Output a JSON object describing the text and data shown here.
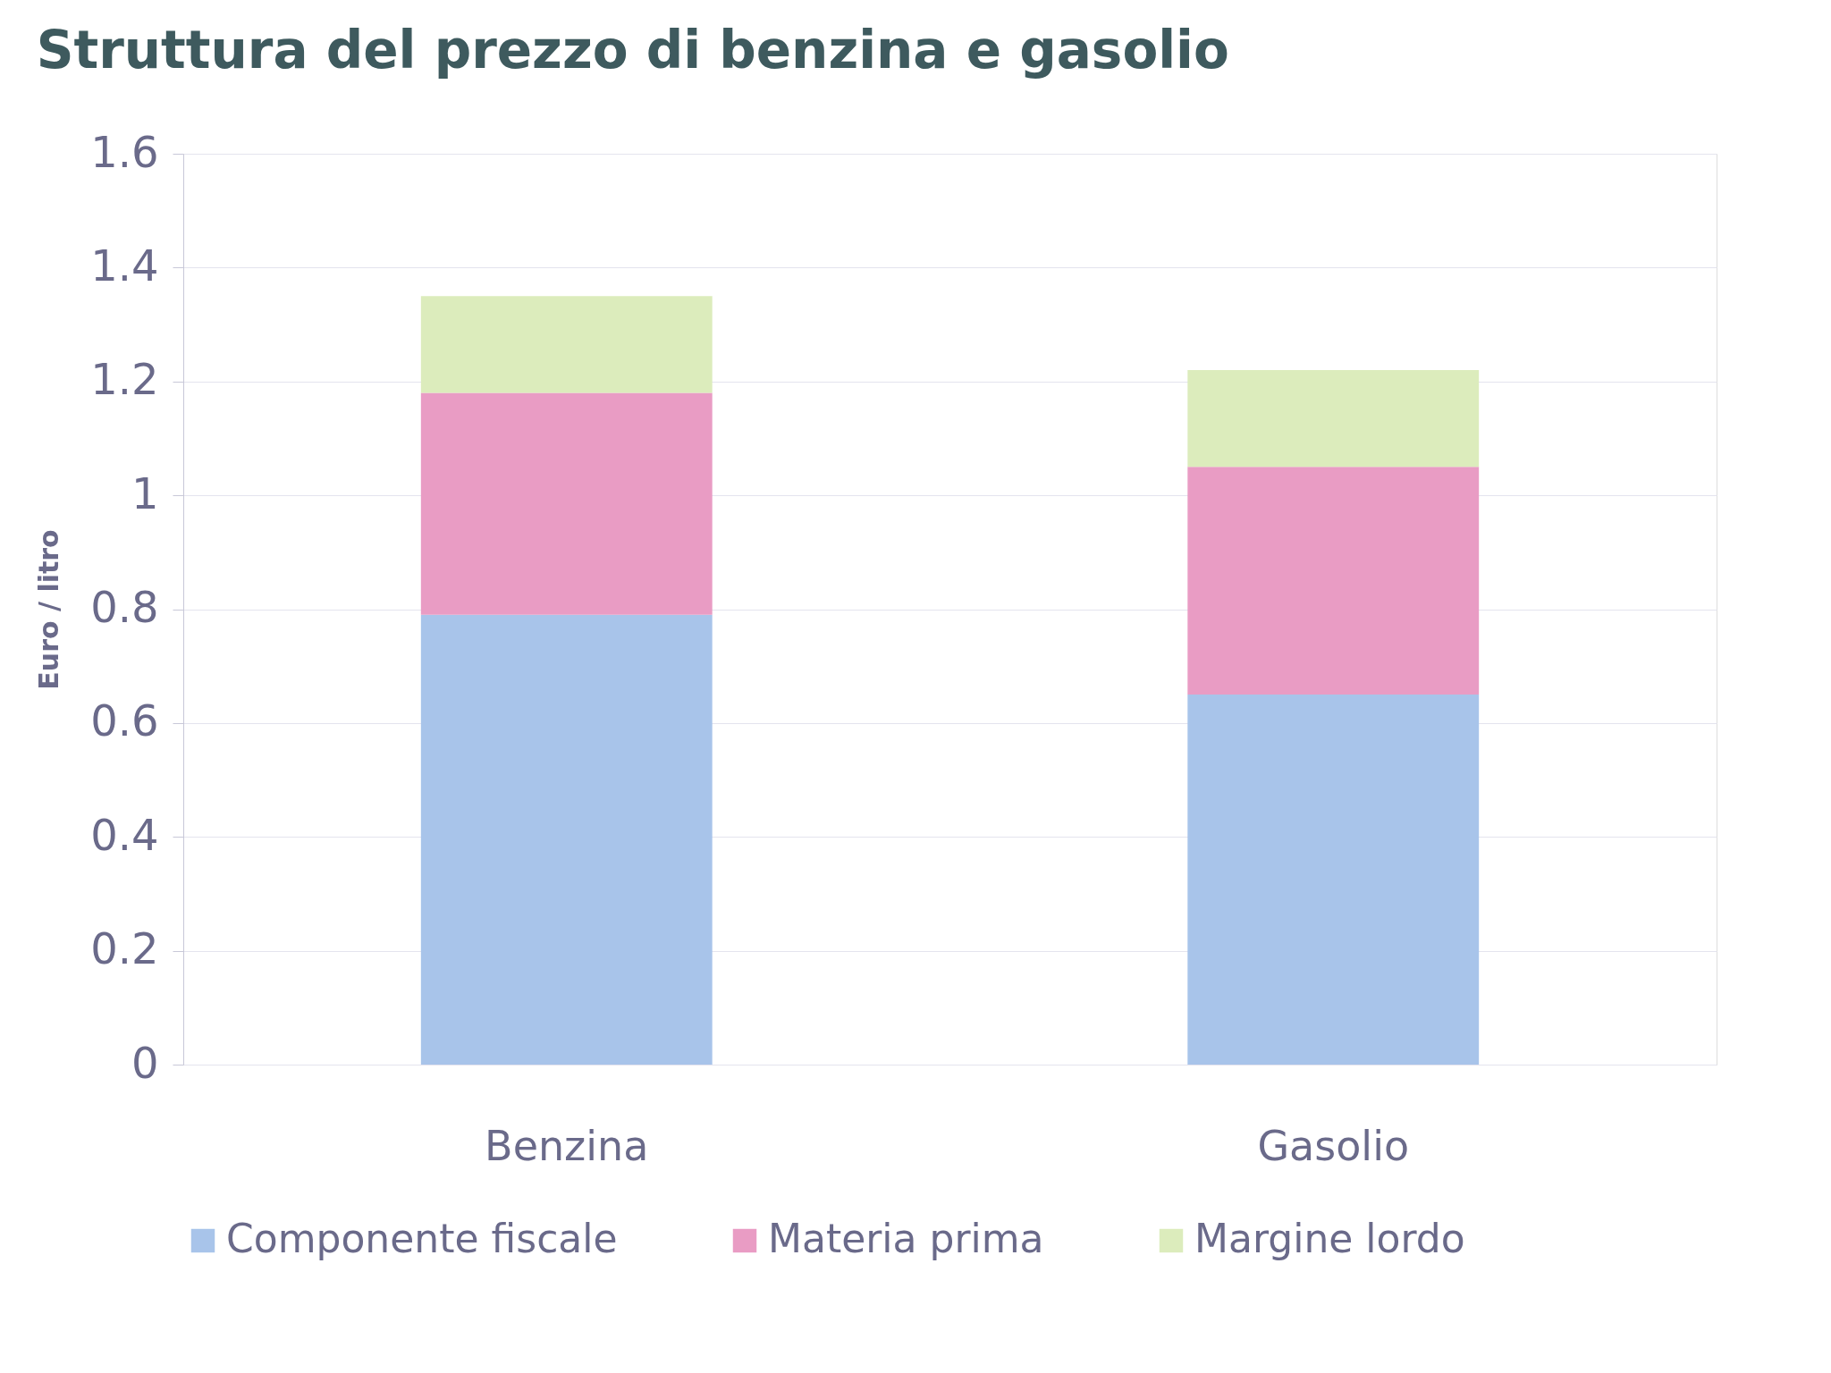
{
  "chart_data": {
    "type": "bar",
    "title": "Struttura del prezzo di benzina e gasolio",
    "ylabel": "Euro / litro",
    "categories": [
      "Benzina",
      "Gasolio"
    ],
    "stacked": true,
    "series": [
      {
        "name": "Componente fiscale",
        "color": "#a8c4ea",
        "values": [
          0.79,
          0.65
        ]
      },
      {
        "name": "Materia prima",
        "color": "#e99cc4",
        "values": [
          0.39,
          0.4
        ]
      },
      {
        "name": "Margine lordo",
        "color": "#dcecbc",
        "values": [
          0.17,
          0.17
        ]
      }
    ],
    "ylim": [
      0,
      1.6
    ],
    "yticks": [
      0,
      0.2,
      0.4,
      0.6,
      0.8,
      1,
      1.2,
      1.4,
      1.6
    ],
    "grid": "y",
    "legend": "bottom"
  }
}
